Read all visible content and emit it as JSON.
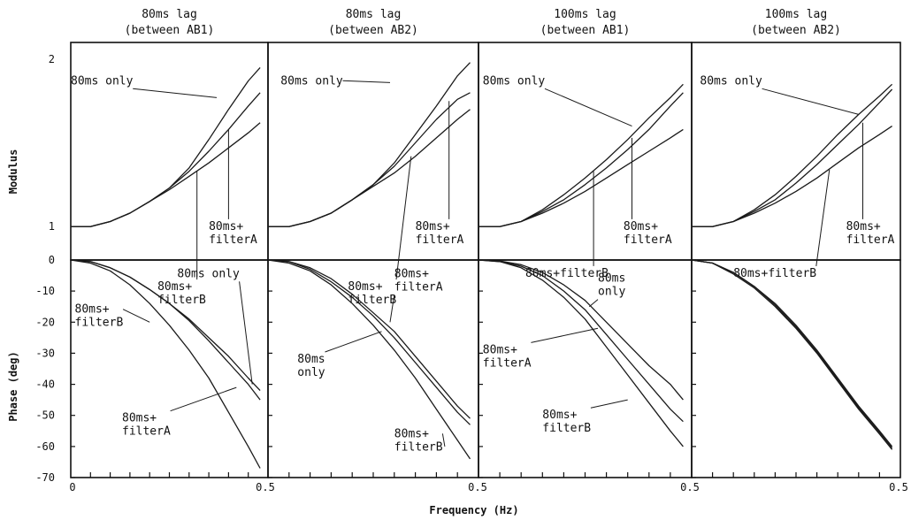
{
  "chart_data": {
    "type": "line",
    "xlabel": "Frequency (Hz)",
    "x_ticks": [
      "0",
      "0.5",
      "0.5",
      "0.5",
      "0.5"
    ],
    "xlim": [
      0,
      0.5
    ],
    "modulus": {
      "ylabel": "Modulus",
      "ylim": [
        0.8,
        2.1
      ],
      "y_ticks": [
        {
          "value": 1,
          "label": "1"
        },
        {
          "value": 2,
          "label": "2"
        }
      ]
    },
    "phase": {
      "ylabel": "Phase (deg)",
      "ylim": [
        -70,
        0
      ],
      "y_ticks": [
        {
          "value": 0,
          "label": "0"
        },
        {
          "value": -10,
          "label": "-10"
        },
        {
          "value": -20,
          "label": "-20"
        },
        {
          "value": -30,
          "label": "-30"
        },
        {
          "value": -40,
          "label": "-40"
        },
        {
          "value": -50,
          "label": "-50"
        },
        {
          "value": -60,
          "label": "-60"
        },
        {
          "value": -70,
          "label": "-70"
        }
      ]
    },
    "panels": [
      {
        "title_line1": "80ms lag",
        "title_line2": "(between AB1)",
        "modulus": [
          {
            "name": "80ms only",
            "x": [
              0,
              0.05,
              0.1,
              0.15,
              0.2,
              0.25,
              0.3,
              0.35,
              0.4,
              0.45,
              0.48
            ],
            "y": [
              1.0,
              1.0,
              1.03,
              1.08,
              1.15,
              1.23,
              1.35,
              1.52,
              1.7,
              1.87,
              1.95
            ]
          },
          {
            "name": "80ms+ filterA",
            "x": [
              0,
              0.05,
              0.1,
              0.15,
              0.2,
              0.25,
              0.3,
              0.35,
              0.4,
              0.45,
              0.48
            ],
            "y": [
              1.0,
              1.0,
              1.03,
              1.08,
              1.15,
              1.23,
              1.33,
              1.45,
              1.58,
              1.72,
              1.8
            ]
          },
          {
            "name": "80ms+ filterB",
            "x": [
              0,
              0.05,
              0.1,
              0.15,
              0.2,
              0.25,
              0.3,
              0.35,
              0.4,
              0.45,
              0.48
            ],
            "y": [
              1.0,
              1.0,
              1.03,
              1.08,
              1.15,
              1.22,
              1.3,
              1.38,
              1.47,
              1.56,
              1.62
            ]
          }
        ],
        "modulus_labels": [
          {
            "lines": [
              "80ms only"
            ],
            "text_x": 0.0,
            "text_y": 1.85,
            "tip_x": 0.37,
            "tip_y": 1.77
          },
          {
            "lines": [
              "80ms+",
              "filterA"
            ],
            "text_x": 0.35,
            "text_y": 0.98,
            "tip_x": 0.4,
            "tip_y": 1.58
          },
          {
            "lines": [
              "80ms+",
              "filterB"
            ],
            "text_x": 0.22,
            "text_y": 0.62,
            "tip_x": 0.32,
            "tip_y": 1.33
          }
        ],
        "phase": [
          {
            "name": "80ms only",
            "x": [
              0,
              0.05,
              0.1,
              0.15,
              0.2,
              0.25,
              0.3,
              0.35,
              0.4,
              0.45,
              0.48
            ],
            "y": [
              0,
              -0.5,
              -2.5,
              -5.5,
              -9.5,
              -14,
              -19,
              -25,
              -31,
              -38,
              -42
            ]
          },
          {
            "name": "80ms+ filterA",
            "x": [
              0,
              0.05,
              0.1,
              0.15,
              0.2,
              0.25,
              0.3,
              0.35,
              0.4,
              0.45,
              0.48
            ],
            "y": [
              0,
              -0.5,
              -2.5,
              -5.5,
              -9.5,
              -14,
              -19.5,
              -26,
              -33,
              -40,
              -45
            ]
          },
          {
            "name": "80ms+ filterB",
            "x": [
              0,
              0.05,
              0.1,
              0.15,
              0.2,
              0.25,
              0.3,
              0.35,
              0.4,
              0.45,
              0.48
            ],
            "y": [
              0,
              -1,
              -3.5,
              -8,
              -14,
              -21,
              -29,
              -38,
              -49,
              -60,
              -67
            ]
          }
        ],
        "phase_labels": [
          {
            "lines": [
              "80ms only"
            ],
            "text_x": 0.27,
            "text_y": -5.5,
            "tip_x": 0.46,
            "tip_y": -40
          },
          {
            "lines": [
              "80ms+",
              "filterB"
            ],
            "text_x": 0.01,
            "text_y": -17,
            "tip_x": 0.2,
            "tip_y": -20
          },
          {
            "lines": [
              "80ms+",
              "filterA"
            ],
            "text_x": 0.13,
            "text_y": -52,
            "tip_x": 0.42,
            "tip_y": -41
          }
        ]
      },
      {
        "title_line1": "80ms lag",
        "title_line2": "(between AB2)",
        "modulus": [
          {
            "name": "80ms only",
            "x": [
              0,
              0.05,
              0.1,
              0.15,
              0.2,
              0.25,
              0.3,
              0.35,
              0.4,
              0.45,
              0.48
            ],
            "y": [
              1.0,
              1.0,
              1.03,
              1.08,
              1.16,
              1.25,
              1.38,
              1.55,
              1.72,
              1.9,
              1.98
            ]
          },
          {
            "name": "80ms+ filterA",
            "x": [
              0,
              0.05,
              0.1,
              0.15,
              0.2,
              0.25,
              0.3,
              0.35,
              0.4,
              0.45,
              0.48
            ],
            "y": [
              1.0,
              1.0,
              1.03,
              1.08,
              1.16,
              1.25,
              1.36,
              1.5,
              1.64,
              1.76,
              1.8
            ]
          },
          {
            "name": "80ms+ filterB",
            "x": [
              0,
              0.05,
              0.1,
              0.15,
              0.2,
              0.25,
              0.3,
              0.35,
              0.4,
              0.45,
              0.48
            ],
            "y": [
              1.0,
              1.0,
              1.03,
              1.08,
              1.16,
              1.24,
              1.32,
              1.42,
              1.53,
              1.64,
              1.7
            ]
          }
        ],
        "modulus_labels": [
          {
            "lines": [
              "80ms only"
            ],
            "text_x": 0.03,
            "text_y": 1.85,
            "tip_x": 0.29,
            "tip_y": 1.86
          },
          {
            "lines": [
              "80ms+",
              "filterA"
            ],
            "text_x": 0.35,
            "text_y": 0.98,
            "tip_x": 0.43,
            "tip_y": 1.75
          },
          {
            "lines": [
              "80ms+",
              "filterB"
            ],
            "text_x": 0.19,
            "text_y": 0.62,
            "tip_x": 0.34,
            "tip_y": 1.42
          }
        ],
        "phase": [
          {
            "name": "80ms only",
            "x": [
              0,
              0.05,
              0.1,
              0.15,
              0.2,
              0.25,
              0.3,
              0.35,
              0.4,
              0.45,
              0.48
            ],
            "y": [
              0,
              -0.5,
              -2.5,
              -6,
              -11,
              -17,
              -23,
              -31,
              -39,
              -47,
              -51
            ]
          },
          {
            "name": "80ms+ filterA",
            "x": [
              0,
              0.05,
              0.1,
              0.15,
              0.2,
              0.25,
              0.3,
              0.35,
              0.4,
              0.45,
              0.48
            ],
            "y": [
              0,
              -0.5,
              -3,
              -7,
              -12,
              -18,
              -25,
              -33,
              -41,
              -49,
              -53
            ]
          },
          {
            "name": "80ms+ filterB",
            "x": [
              0,
              0.05,
              0.1,
              0.15,
              0.2,
              0.25,
              0.3,
              0.35,
              0.4,
              0.45,
              0.48
            ],
            "y": [
              0,
              -1,
              -3.5,
              -8,
              -14,
              -21,
              -29,
              -38,
              -48,
              -58,
              -64
            ]
          }
        ],
        "phase_labels": [
          {
            "lines": [
              "80ms+",
              "filterA"
            ],
            "text_x": 0.3,
            "text_y": -5.5,
            "tip_x": 0.29,
            "tip_y": -20
          },
          {
            "lines": [
              "80ms",
              "only"
            ],
            "text_x": 0.07,
            "text_y": -33,
            "tip_x": 0.27,
            "tip_y": -23
          },
          {
            "lines": [
              "80ms+",
              "filterB"
            ],
            "text_x": 0.3,
            "text_y": -57,
            "tip_x": 0.42,
            "tip_y": -60
          }
        ]
      },
      {
        "title_line1": "100ms lag",
        "title_line2": "(between AB1)",
        "modulus": [
          {
            "name": "80ms only",
            "x": [
              0,
              0.05,
              0.1,
              0.15,
              0.2,
              0.25,
              0.3,
              0.35,
              0.4,
              0.45,
              0.48
            ],
            "y": [
              1.0,
              1.0,
              1.03,
              1.1,
              1.19,
              1.29,
              1.4,
              1.52,
              1.65,
              1.77,
              1.85
            ]
          },
          {
            "name": "80ms+ filterA",
            "x": [
              0,
              0.05,
              0.1,
              0.15,
              0.2,
              0.25,
              0.3,
              0.35,
              0.4,
              0.45,
              0.48
            ],
            "y": [
              1.0,
              1.0,
              1.03,
              1.09,
              1.16,
              1.25,
              1.35,
              1.46,
              1.58,
              1.72,
              1.8
            ]
          },
          {
            "name": "80ms+ filterB",
            "x": [
              0,
              0.05,
              0.1,
              0.15,
              0.2,
              0.25,
              0.3,
              0.35,
              0.4,
              0.45,
              0.48
            ],
            "y": [
              1.0,
              1.0,
              1.03,
              1.08,
              1.14,
              1.21,
              1.29,
              1.37,
              1.45,
              1.53,
              1.58
            ]
          }
        ],
        "modulus_labels": [
          {
            "lines": [
              "80ms only"
            ],
            "text_x": 0.01,
            "text_y": 1.85,
            "tip_x": 0.36,
            "tip_y": 1.6
          },
          {
            "lines": [
              "80ms+",
              "filterA"
            ],
            "text_x": 0.34,
            "text_y": 0.98,
            "tip_x": 0.36,
            "tip_y": 1.53
          },
          {
            "lines": [
              "80ms+filterB"
            ],
            "text_x": 0.11,
            "text_y": 0.7,
            "tip_x": 0.27,
            "tip_y": 1.33
          }
        ],
        "phase": [
          {
            "name": "80ms only",
            "x": [
              0,
              0.05,
              0.1,
              0.15,
              0.2,
              0.25,
              0.3,
              0.35,
              0.4,
              0.45,
              0.48
            ],
            "y": [
              0,
              -0.3,
              -1.5,
              -4,
              -8,
              -13,
              -20,
              -27,
              -34,
              -40,
              -45
            ]
          },
          {
            "name": "80ms+ filterA",
            "x": [
              0,
              0.05,
              0.1,
              0.15,
              0.2,
              0.25,
              0.3,
              0.35,
              0.4,
              0.45,
              0.48
            ],
            "y": [
              0,
              -0.5,
              -2,
              -5,
              -10,
              -16,
              -24,
              -32,
              -40,
              -48,
              -52
            ]
          },
          {
            "name": "80ms+ filterB",
            "x": [
              0,
              0.05,
              0.1,
              0.15,
              0.2,
              0.25,
              0.3,
              0.35,
              0.4,
              0.45,
              0.48
            ],
            "y": [
              0,
              -0.5,
              -2.5,
              -6.5,
              -12,
              -19,
              -28,
              -37,
              -46,
              -55,
              -60
            ]
          }
        ],
        "phase_labels": [
          {
            "lines": [
              "80ms",
              "only"
            ],
            "text_x": 0.28,
            "text_y": -7,
            "tip_x": 0.26,
            "tip_y": -15
          },
          {
            "lines": [
              "80ms+",
              "filterA"
            ],
            "text_x": 0.01,
            "text_y": -30,
            "tip_x": 0.28,
            "tip_y": -22
          },
          {
            "lines": [
              "80ms+",
              "filterB"
            ],
            "text_x": 0.15,
            "text_y": -51,
            "tip_x": 0.35,
            "tip_y": -45
          }
        ]
      },
      {
        "title_line1": "100ms lag",
        "title_line2": "(between AB2)",
        "modulus": [
          {
            "name": "80ms only",
            "x": [
              0,
              0.05,
              0.1,
              0.15,
              0.2,
              0.25,
              0.3,
              0.35,
              0.4,
              0.45,
              0.48
            ],
            "y": [
              1.0,
              1.0,
              1.03,
              1.1,
              1.19,
              1.3,
              1.42,
              1.55,
              1.67,
              1.78,
              1.85
            ]
          },
          {
            "name": "80ms+ filterA",
            "x": [
              0,
              0.05,
              0.1,
              0.15,
              0.2,
              0.25,
              0.3,
              0.35,
              0.4,
              0.45,
              0.48
            ],
            "y": [
              1.0,
              1.0,
              1.03,
              1.09,
              1.16,
              1.26,
              1.37,
              1.49,
              1.61,
              1.74,
              1.82
            ]
          },
          {
            "name": "80ms+ filterB",
            "x": [
              0,
              0.05,
              0.1,
              0.15,
              0.2,
              0.25,
              0.3,
              0.35,
              0.4,
              0.45,
              0.48
            ],
            "y": [
              1.0,
              1.0,
              1.03,
              1.08,
              1.14,
              1.21,
              1.29,
              1.38,
              1.47,
              1.55,
              1.6
            ]
          }
        ],
        "modulus_labels": [
          {
            "lines": [
              "80ms only"
            ],
            "text_x": 0.02,
            "text_y": 1.85,
            "tip_x": 0.4,
            "tip_y": 1.67
          },
          {
            "lines": [
              "80ms+",
              "filterA"
            ],
            "text_x": 0.37,
            "text_y": 0.98,
            "tip_x": 0.41,
            "tip_y": 1.62
          },
          {
            "lines": [
              "80ms+filterB"
            ],
            "text_x": 0.1,
            "text_y": 0.7,
            "tip_x": 0.33,
            "tip_y": 1.34
          }
        ],
        "phase": [
          {
            "name": "80ms only",
            "x": [
              0,
              0.05,
              0.1,
              0.15,
              0.2,
              0.25,
              0.3,
              0.35,
              0.4,
              0.45,
              0.48
            ],
            "y": [
              0,
              -1,
              -4,
              -8.5,
              -14,
              -21,
              -29,
              -38,
              -47,
              -55,
              -60
            ]
          },
          {
            "name": "80ms+ filterA",
            "x": [
              0,
              0.05,
              0.1,
              0.15,
              0.2,
              0.25,
              0.3,
              0.35,
              0.4,
              0.45,
              0.48
            ],
            "y": [
              0,
              -1,
              -4.5,
              -9,
              -15,
              -22,
              -30,
              -39,
              -48,
              -56,
              -61
            ]
          },
          {
            "name": "80ms+ filterB",
            "x": [
              0,
              0.05,
              0.1,
              0.15,
              0.2,
              0.25,
              0.3,
              0.35,
              0.4,
              0.45,
              0.48
            ],
            "y": [
              0,
              -1,
              -4,
              -8.5,
              -14.5,
              -21.5,
              -29.5,
              -38.5,
              -47.5,
              -55.5,
              -60.5
            ]
          }
        ],
        "phase_labels": []
      }
    ]
  }
}
